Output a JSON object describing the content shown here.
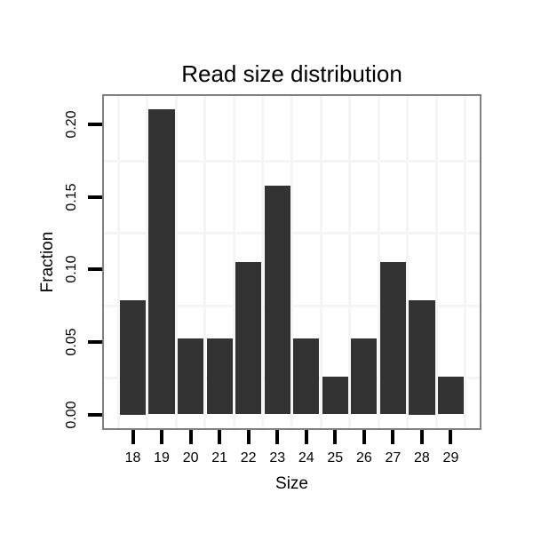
{
  "chart_data": {
    "type": "bar",
    "title": "Read size distribution",
    "xlabel": "Size",
    "ylabel": "Fraction",
    "categories": [
      18,
      19,
      20,
      21,
      22,
      23,
      24,
      25,
      26,
      27,
      28,
      29
    ],
    "values": [
      0.0789,
      0.2105,
      0.0526,
      0.0526,
      0.1053,
      0.1579,
      0.0526,
      0.0263,
      0.0526,
      0.1053,
      0.0789,
      0.0263
    ],
    "y_tick_labels": [
      "0.00",
      "0.05",
      "0.10",
      "0.15",
      "0.20"
    ],
    "y_tick_values": [
      0,
      0.05,
      0.1,
      0.15,
      0.2
    ],
    "xlim": [
      17,
      30
    ],
    "ylim": [
      -0.0095,
      0.2198
    ],
    "bar_width": 0.9,
    "grid": {
      "minor_x": [
        17.5,
        18.5,
        19.5,
        20.5,
        21.5,
        22.5,
        23.5,
        24.5,
        25.5,
        26.5,
        27.5,
        28.5,
        29.5
      ],
      "minor_y": [
        0.025,
        0.075,
        0.125,
        0.175
      ],
      "major_gridlines_visible": false
    },
    "legend_position": "none",
    "colors": {
      "bar": "#333333",
      "grid": "#f5f5f5",
      "panel_border": "#818181",
      "tick": "#000000",
      "text": "#000000",
      "background": "#ffffff"
    }
  }
}
